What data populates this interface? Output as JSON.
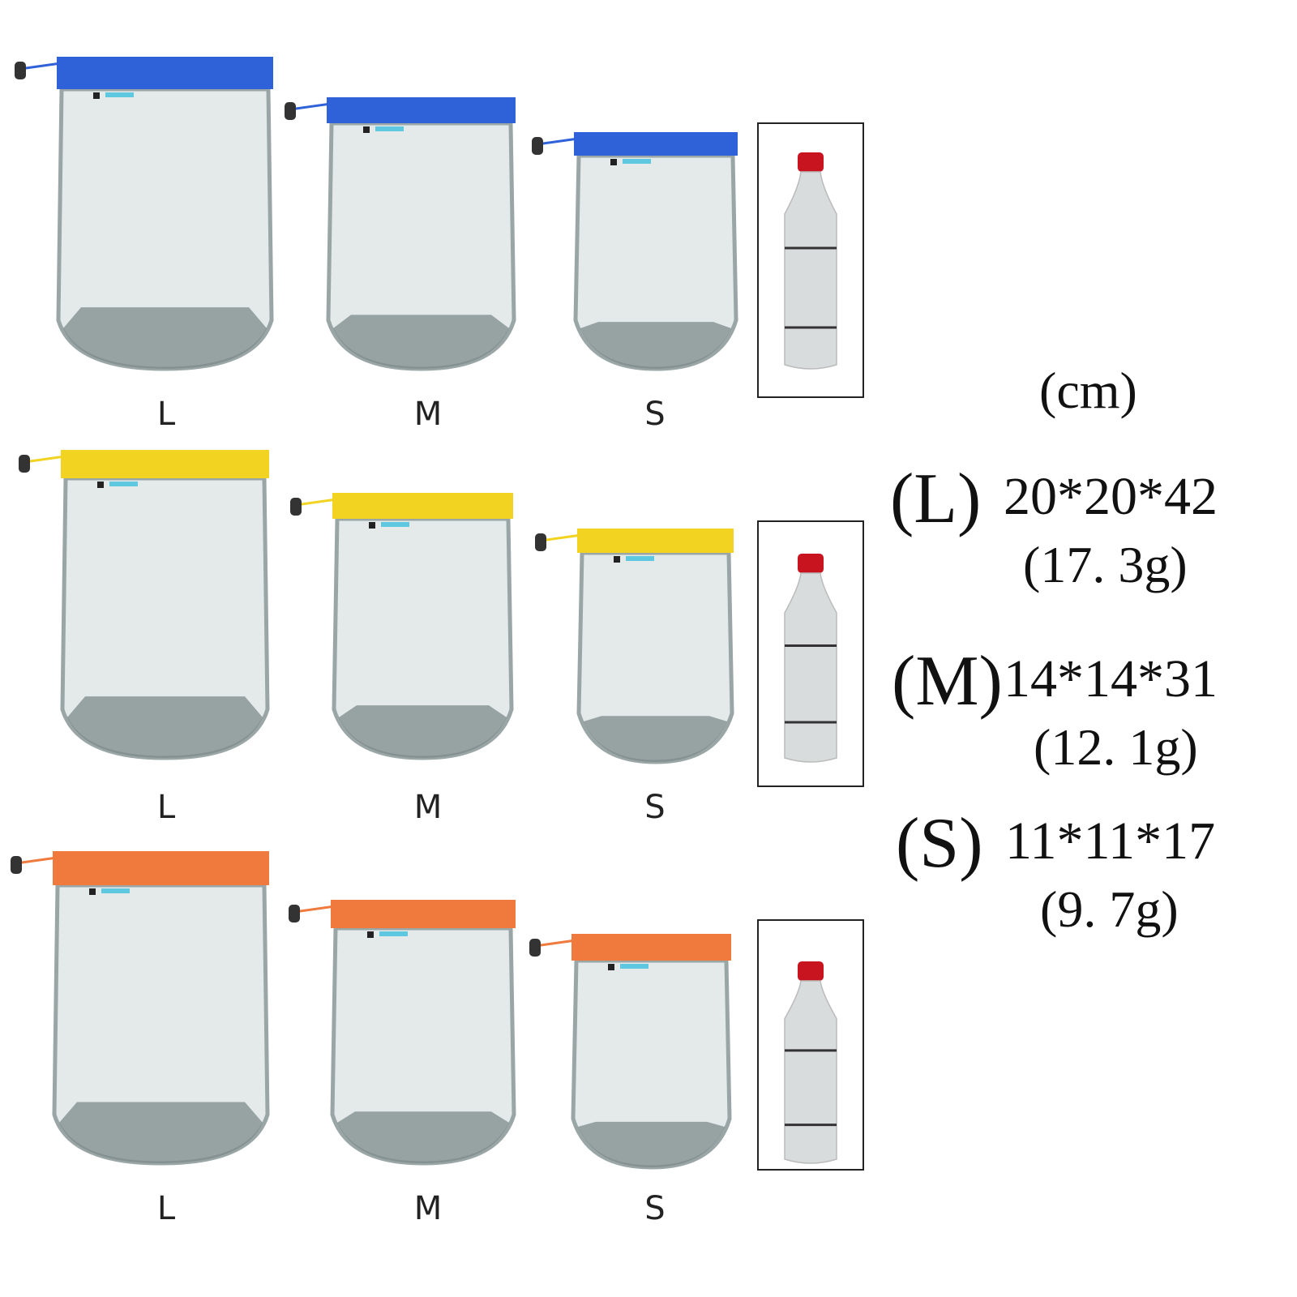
{
  "rows": [
    {
      "color_name": "blue",
      "band_color": "#2f62d8",
      "labels": [
        "L",
        "M",
        "S"
      ]
    },
    {
      "color_name": "yellow",
      "band_color": "#f2d321",
      "labels": [
        "L",
        "M",
        "S"
      ]
    },
    {
      "color_name": "orange",
      "band_color": "#f07a3e",
      "labels": [
        "L",
        "M",
        "S"
      ]
    }
  ],
  "colors": {
    "mesh": "#e4eaea",
    "mesh_edge": "#9aa6a6",
    "base": "#7d8a8a",
    "bottle_cap": "#c8141e"
  },
  "icons": [
    "drawstring-toggle-icon",
    "water-bottle-icon"
  ],
  "specs": {
    "unit": "(cm)",
    "items": [
      {
        "size": "(L)",
        "dims": "20*20*42",
        "weight": "(17. 3g)"
      },
      {
        "size": "(M)",
        "dims": "14*14*31",
        "weight": "(12. 1g)"
      },
      {
        "size": "(S)",
        "dims": "11*11*17",
        "weight": "(9. 7g)"
      }
    ]
  }
}
